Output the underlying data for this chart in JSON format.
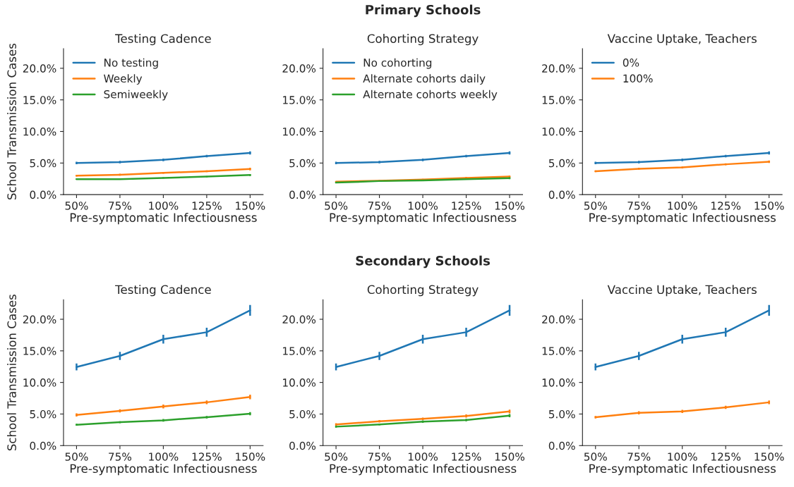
{
  "chart_data": [
    {
      "type": "line",
      "title": "Testing Cadence",
      "xlabel": "Pre-symptomatic Infectiousness",
      "ylabel": "School Transmission Cases",
      "annotations": [
        "Primary Schools"
      ],
      "categories": [
        "50%",
        "75%",
        "100%",
        "125%",
        "150%"
      ],
      "ylim": [
        0,
        23.1
      ],
      "yticks": [
        {
          "value": 0,
          "label": "0.0%"
        },
        {
          "value": 5,
          "label": "5.0%"
        },
        {
          "value": 10,
          "label": "10.0%"
        },
        {
          "value": 15,
          "label": "15.0%"
        },
        {
          "value": 20,
          "label": "20.0%"
        }
      ],
      "legend": "top left",
      "grid": false,
      "series": [
        {
          "name": "No testing",
          "color": "#1f77b4",
          "values": [
            5.0,
            5.15,
            5.5,
            6.1,
            6.6
          ],
          "errors": [
            0.2,
            0.2,
            0.2,
            0.2,
            0.25
          ]
        },
        {
          "name": "Weekly",
          "color": "#ff7f0e",
          "values": [
            3.0,
            3.15,
            3.45,
            3.7,
            4.05
          ],
          "errors": [
            0.15,
            0.15,
            0.15,
            0.15,
            0.2
          ]
        },
        {
          "name": "Semiweekly",
          "color": "#2ca02c",
          "values": [
            2.45,
            2.45,
            2.65,
            2.85,
            3.1
          ],
          "errors": [
            0.1,
            0.1,
            0.1,
            0.1,
            0.15
          ]
        }
      ]
    },
    {
      "type": "line",
      "title": "Cohorting Strategy",
      "xlabel": "Pre-symptomatic Infectiousness",
      "categories": [
        "50%",
        "75%",
        "100%",
        "125%",
        "150%"
      ],
      "ylim": [
        0,
        23.1
      ],
      "yticks": [
        {
          "value": 0,
          "label": "0.0%"
        },
        {
          "value": 5,
          "label": "5.0%"
        },
        {
          "value": 10,
          "label": "10.0%"
        },
        {
          "value": 15,
          "label": "15.0%"
        },
        {
          "value": 20,
          "label": "20.0%"
        }
      ],
      "legend": "top left",
      "grid": false,
      "series": [
        {
          "name": "No cohorting",
          "color": "#1f77b4",
          "values": [
            5.0,
            5.15,
            5.5,
            6.1,
            6.6
          ],
          "errors": [
            0.2,
            0.2,
            0.2,
            0.2,
            0.25
          ]
        },
        {
          "name": "Alternate cohorts daily",
          "color": "#ff7f0e",
          "values": [
            2.05,
            2.2,
            2.4,
            2.65,
            2.85
          ],
          "errors": [
            0.1,
            0.1,
            0.1,
            0.15,
            0.15
          ]
        },
        {
          "name": "Alternate cohorts weekly",
          "color": "#2ca02c",
          "values": [
            1.9,
            2.15,
            2.25,
            2.45,
            2.6
          ],
          "errors": [
            0.1,
            0.1,
            0.1,
            0.1,
            0.15
          ]
        }
      ]
    },
    {
      "type": "line",
      "title": "Vaccine Uptake, Teachers",
      "xlabel": "Pre-symptomatic Infectiousness",
      "categories": [
        "50%",
        "75%",
        "100%",
        "125%",
        "150%"
      ],
      "ylim": [
        0,
        23.1
      ],
      "yticks": [
        {
          "value": 0,
          "label": "0.0%"
        },
        {
          "value": 5,
          "label": "5.0%"
        },
        {
          "value": 10,
          "label": "10.0%"
        },
        {
          "value": 15,
          "label": "15.0%"
        },
        {
          "value": 20,
          "label": "20.0%"
        }
      ],
      "legend": "top left",
      "grid": false,
      "series": [
        {
          "name": "0%",
          "color": "#1f77b4",
          "values": [
            5.0,
            5.15,
            5.5,
            6.1,
            6.6
          ],
          "errors": [
            0.2,
            0.2,
            0.2,
            0.2,
            0.25
          ]
        },
        {
          "name": "100%",
          "color": "#ff7f0e",
          "values": [
            3.7,
            4.1,
            4.3,
            4.8,
            5.2
          ],
          "errors": [
            0.15,
            0.15,
            0.15,
            0.15,
            0.2
          ]
        }
      ]
    },
    {
      "type": "line",
      "title": "Testing Cadence",
      "xlabel": "Pre-symptomatic Infectiousness",
      "ylabel": "School Transmission Cases",
      "annotations": [
        "Secondary Schools"
      ],
      "categories": [
        "50%",
        "75%",
        "100%",
        "125%",
        "150%"
      ],
      "ylim": [
        0,
        23.1
      ],
      "yticks": [
        {
          "value": 0,
          "label": "0.0%"
        },
        {
          "value": 5,
          "label": "5.0%"
        },
        {
          "value": 10,
          "label": "10.0%"
        },
        {
          "value": 15,
          "label": "15.0%"
        },
        {
          "value": 20,
          "label": "20.0%"
        }
      ],
      "grid": false,
      "series": [
        {
          "color": "#1f77b4",
          "values": [
            12.45,
            14.2,
            16.85,
            17.95,
            21.4
          ],
          "errors": [
            0.55,
            0.65,
            0.7,
            0.7,
            0.85
          ]
        },
        {
          "color": "#ff7f0e",
          "values": [
            4.85,
            5.5,
            6.2,
            6.85,
            7.7
          ],
          "errors": [
            0.25,
            0.25,
            0.3,
            0.3,
            0.35
          ]
        },
        {
          "color": "#2ca02c",
          "values": [
            3.3,
            3.7,
            4.0,
            4.5,
            5.05
          ],
          "errors": [
            0.15,
            0.15,
            0.2,
            0.2,
            0.25
          ]
        }
      ]
    },
    {
      "type": "line",
      "title": "Cohorting Strategy",
      "xlabel": "Pre-symptomatic Infectiousness",
      "categories": [
        "50%",
        "75%",
        "100%",
        "125%",
        "150%"
      ],
      "ylim": [
        0,
        23.1
      ],
      "yticks": [
        {
          "value": 0,
          "label": "0.0%"
        },
        {
          "value": 5,
          "label": "5.0%"
        },
        {
          "value": 10,
          "label": "10.0%"
        },
        {
          "value": 15,
          "label": "15.0%"
        },
        {
          "value": 20,
          "label": "20.0%"
        }
      ],
      "grid": false,
      "series": [
        {
          "color": "#1f77b4",
          "values": [
            12.45,
            14.2,
            16.85,
            17.95,
            21.4
          ],
          "errors": [
            0.55,
            0.65,
            0.7,
            0.7,
            0.85
          ]
        },
        {
          "color": "#ff7f0e",
          "values": [
            3.35,
            3.85,
            4.25,
            4.7,
            5.4
          ],
          "errors": [
            0.2,
            0.2,
            0.2,
            0.25,
            0.3
          ]
        },
        {
          "color": "#2ca02c",
          "values": [
            3.0,
            3.35,
            3.8,
            4.05,
            4.75
          ],
          "errors": [
            0.15,
            0.15,
            0.2,
            0.2,
            0.25
          ]
        }
      ]
    },
    {
      "type": "line",
      "title": "Vaccine Uptake, Teachers",
      "xlabel": "Pre-symptomatic Infectiousness",
      "categories": [
        "50%",
        "75%",
        "100%",
        "125%",
        "150%"
      ],
      "ylim": [
        0,
        23.1
      ],
      "yticks": [
        {
          "value": 0,
          "label": "0.0%"
        },
        {
          "value": 5,
          "label": "5.0%"
        },
        {
          "value": 10,
          "label": "10.0%"
        },
        {
          "value": 15,
          "label": "15.0%"
        },
        {
          "value": 20,
          "label": "20.0%"
        }
      ],
      "grid": false,
      "series": [
        {
          "color": "#1f77b4",
          "values": [
            12.45,
            14.2,
            16.85,
            17.95,
            21.4
          ],
          "errors": [
            0.55,
            0.65,
            0.7,
            0.7,
            0.85
          ]
        },
        {
          "color": "#ff7f0e",
          "values": [
            4.5,
            5.2,
            5.4,
            6.05,
            6.85
          ],
          "errors": [
            0.2,
            0.25,
            0.25,
            0.25,
            0.3
          ]
        }
      ]
    }
  ]
}
